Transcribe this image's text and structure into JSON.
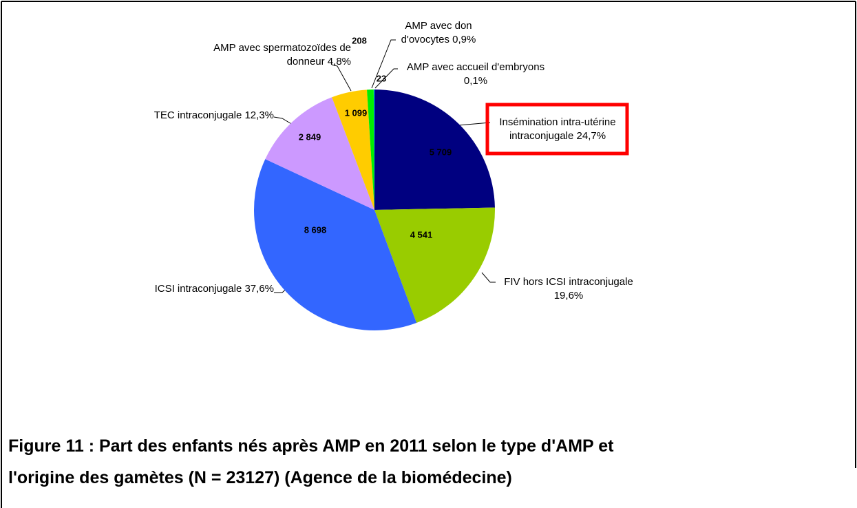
{
  "chart_data": {
    "type": "pie",
    "title": [
      "Figure 11 : Part des enfants nés après AMP en 2011 selon le type d'AMP et",
      "l'origine des gamètes (N = 23127) (Agence de la biomédecine)"
    ],
    "categories": [
      "Insémination intra-utérine intraconjugale 24,7%",
      "FIV hors ICSI intraconjugale 19,6%",
      "ICSI intraconjugale 37,6%",
      "TEC intraconjugale 12,3%",
      "AMP avec spermatozoïdes de donneur 4,8%",
      "AMP avec don d'ovocytes 0,9%",
      "AMP avec accueil d'embryons 0,1%"
    ],
    "values": [
      5709,
      4541,
      8698,
      2849,
      1099,
      208,
      23
    ],
    "value_labels": [
      "5 709",
      "4 541",
      "8 698",
      "2 849",
      "1 099",
      "208",
      "23"
    ],
    "colors": [
      "#000080",
      "#99cc00",
      "#3366ff",
      "#cc99ff",
      "#ffcc00",
      "#00ee00",
      "#00ccff"
    ]
  }
}
